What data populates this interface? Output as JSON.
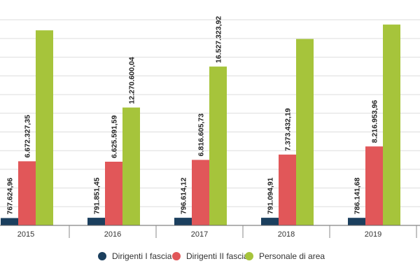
{
  "chart_data": {
    "type": "bar",
    "categories": [
      "2015",
      "2016",
      "2017",
      "2018",
      "2019"
    ],
    "series": [
      {
        "name": "Dirigenti I fascia",
        "color": "#1b3f5e",
        "values": [
          767624.96,
          791851.45,
          796614.12,
          791094.91,
          786141.68
        ],
        "labels": [
          "767.624,96",
          "791.851,45",
          "796.614,12",
          "791.094,91",
          "786.141,68"
        ]
      },
      {
        "name": "Dirigenti II fascia",
        "color": "#e15759",
        "values": [
          6672327.35,
          6625591.59,
          6816605.73,
          7373432.19,
          8216953.96
        ],
        "labels": [
          "6.672.327,35",
          "6.625.591,59",
          "6.816.605,73",
          "7.373.432,19",
          "8.216.953,96"
        ]
      },
      {
        "name": "Personale di area",
        "color": "#a6c43b",
        "values": [
          20300000,
          12270600.04,
          16527323.92,
          19400000,
          20900000
        ],
        "labels": [
          "",
          "12.270.600,04",
          "16.527.323,92",
          "",
          ""
        ]
      }
    ],
    "ylim": [
      0,
      22000000
    ],
    "grid": true,
    "legend": "bottom",
    "title": "",
    "xlabel": "",
    "ylabel": ""
  }
}
